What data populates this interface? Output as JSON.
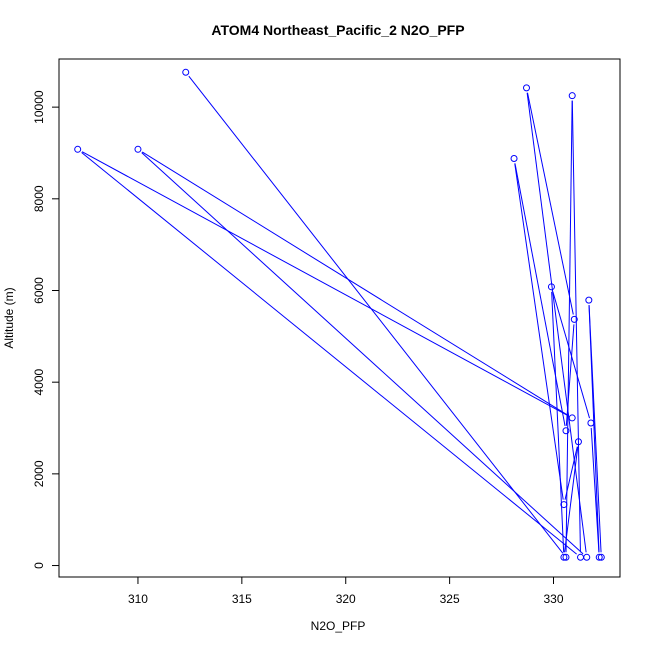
{
  "chart_data": {
    "type": "scatter",
    "title": "ATOM4 Northeast_Pacific_2 N2O_PFP",
    "xlabel": "N2O_PFP",
    "ylabel": "Altitude (m)",
    "xlim": [
      306.2,
      333.2
    ],
    "ylim": [
      -250,
      11050
    ],
    "xticks": [
      310,
      315,
      320,
      325,
      330
    ],
    "yticks": [
      0,
      2000,
      4000,
      6000,
      8000,
      10000
    ],
    "grid": false,
    "legend": "none",
    "connect_points": true,
    "series": [
      {
        "color": "#0000ff",
        "marker": "open-circle",
        "points": [
          {
            "x": 312.3,
            "y": 10760
          },
          {
            "x": 330.6,
            "y": 180
          },
          {
            "x": 330.9,
            "y": 10250
          },
          {
            "x": 331.3,
            "y": 180
          },
          {
            "x": 307.1,
            "y": 9080
          },
          {
            "x": 330.9,
            "y": 3220
          },
          {
            "x": 310.0,
            "y": 9080
          },
          {
            "x": 331.6,
            "y": 180
          },
          {
            "x": 328.7,
            "y": 10420
          },
          {
            "x": 331.0,
            "y": 5370
          },
          {
            "x": 330.6,
            "y": 2940
          },
          {
            "x": 328.1,
            "y": 8880
          },
          {
            "x": 330.5,
            "y": 1330
          },
          {
            "x": 331.2,
            "y": 2700
          },
          {
            "x": 330.5,
            "y": 180
          },
          {
            "x": 329.9,
            "y": 6080
          },
          {
            "x": 331.8,
            "y": 3110
          },
          {
            "x": 332.2,
            "y": 180
          },
          {
            "x": 331.7,
            "y": 5790
          },
          {
            "x": 332.3,
            "y": 180
          }
        ]
      }
    ]
  }
}
